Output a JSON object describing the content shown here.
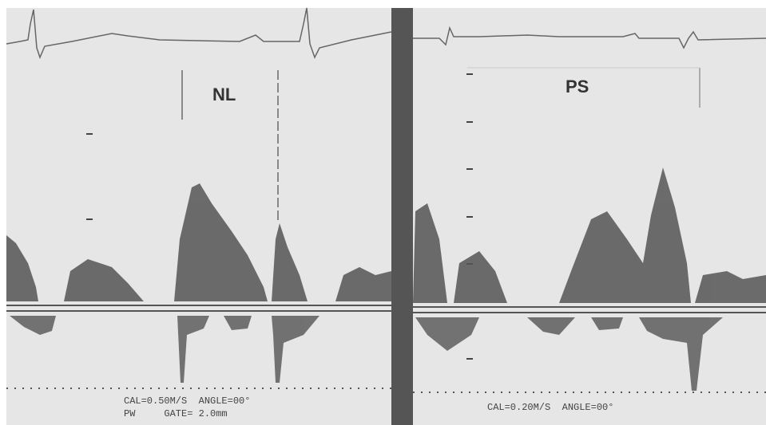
{
  "panels": [
    {
      "label": "NL",
      "caption_lines": [
        "CAL=0.50M/S  ANGLE=00°",
        "PW     GATE= 2.0mm"
      ]
    },
    {
      "label": "PS",
      "caption_lines": [
        "CAL=0.20M/S  ANGLE=00°"
      ]
    }
  ]
}
